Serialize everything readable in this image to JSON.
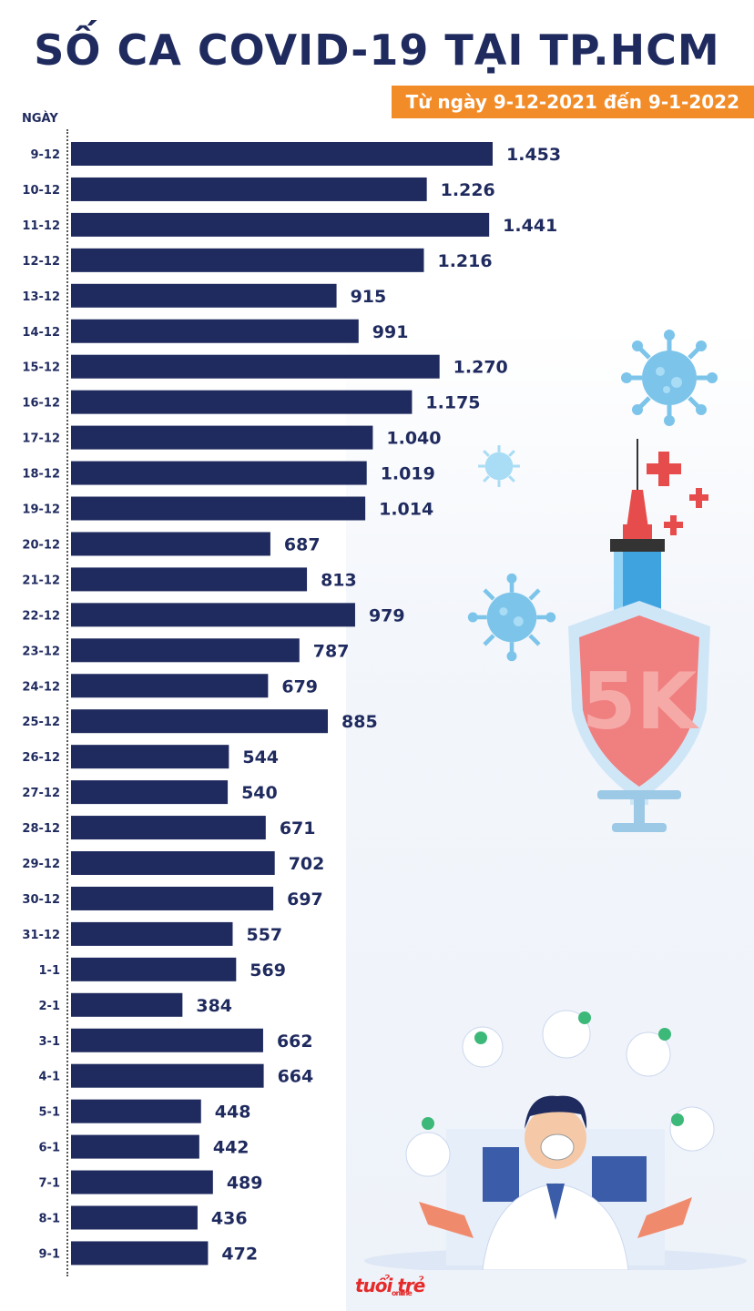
{
  "header": {
    "title": "SỐ CA COVID-19 TẠI TP.HCM",
    "subtitle": "Từ ngày 9-12-2021 đến 9-1-2022"
  },
  "chart_data": {
    "type": "bar",
    "orientation": "horizontal",
    "ylabel": "NGÀY",
    "categories": [
      "9-12",
      "10-12",
      "11-12",
      "12-12",
      "13-12",
      "14-12",
      "15-12",
      "16-12",
      "17-12",
      "18-12",
      "19-12",
      "20-12",
      "21-12",
      "22-12",
      "23-12",
      "24-12",
      "25-12",
      "26-12",
      "27-12",
      "28-12",
      "29-12",
      "30-12",
      "31-12",
      "1-1",
      "2-1",
      "3-1",
      "4-1",
      "5-1",
      "6-1",
      "7-1",
      "8-1",
      "9-1"
    ],
    "values": [
      1453,
      1226,
      1441,
      1216,
      915,
      991,
      1270,
      1175,
      1040,
      1019,
      1014,
      687,
      813,
      979,
      787,
      679,
      885,
      544,
      540,
      671,
      702,
      697,
      557,
      569,
      384,
      662,
      664,
      448,
      442,
      489,
      436,
      472
    ],
    "value_labels": [
      "1.453",
      "1.226",
      "1.441",
      "1.216",
      "915",
      "991",
      "1.270",
      "1.175",
      "1.040",
      "1.019",
      "1.014",
      "687",
      "813",
      "979",
      "787",
      "679",
      "885",
      "544",
      "540",
      "671",
      "702",
      "697",
      "557",
      "569",
      "384",
      "662",
      "664",
      "448",
      "442",
      "489",
      "436",
      "472"
    ],
    "bar_color": "#1f2a5e",
    "grid": false
  },
  "illustration": {
    "shield_text": "5K",
    "colors": {
      "virus": "#7cc4ea",
      "shield": "#f07f7f",
      "cross": "#e74c4c",
      "accent": "#f28c28"
    },
    "icons": [
      "virus-icon",
      "syringe-icon",
      "shield-icon",
      "doctor-icon",
      "medical-cross-icon"
    ]
  },
  "footer": {
    "logo_text": "tuổi trẻ",
    "logo_sub": "online"
  }
}
